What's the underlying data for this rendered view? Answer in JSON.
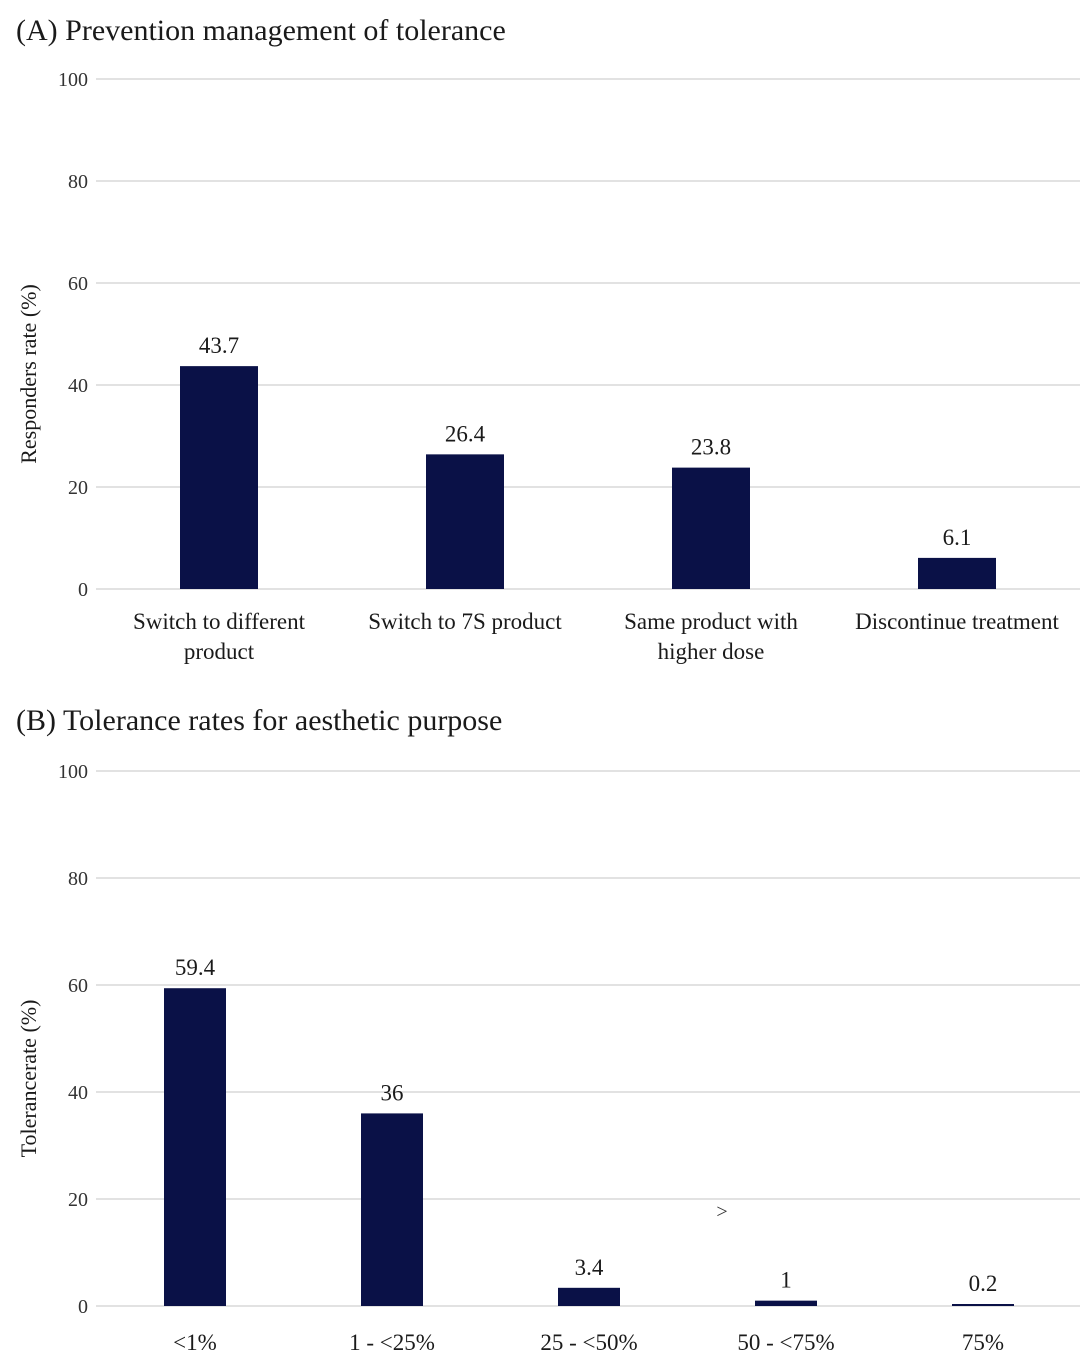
{
  "chart_data": [
    {
      "type": "bar",
      "title": "(A) Prevention management of tolerance",
      "xlabel": "",
      "ylabel": "Responders rate (%)",
      "ylim": [
        0,
        100
      ],
      "yticks": [
        "0",
        "20",
        "40",
        "60",
        "80",
        "100"
      ],
      "grid": true,
      "categories": [
        [
          "Switch to different",
          "product"
        ],
        [
          "Switch to 7S product"
        ],
        [
          "Same product with",
          "higher dose"
        ],
        [
          "Discontinue treatment"
        ]
      ],
      "values": [
        43.7,
        26.4,
        23.8,
        6.1
      ],
      "value_labels": [
        "43.7",
        "26.4",
        "23.8",
        "6.1"
      ],
      "bar_color": "#0a1147"
    },
    {
      "type": "bar",
      "title": "(B) Tolerance rates for aesthetic purpose",
      "xlabel": "",
      "ylabel": "Tolerancerate (%)",
      "ylim": [
        0,
        100
      ],
      "yticks": [
        "0",
        "20",
        "40",
        "60",
        "80",
        "100"
      ],
      "grid": true,
      "categories": [
        [
          "<1%"
        ],
        [
          "1 - <25%"
        ],
        [
          "25 - <50%"
        ],
        [
          "50 - <75%"
        ],
        [
          "75%"
        ]
      ],
      "values": [
        59.4,
        36,
        3.4,
        1,
        0.2
      ],
      "value_labels": [
        "59.4",
        "36",
        "3.4",
        "1",
        "0.2"
      ],
      "bar_color": "#0a1147",
      "annotation": ">"
    }
  ]
}
